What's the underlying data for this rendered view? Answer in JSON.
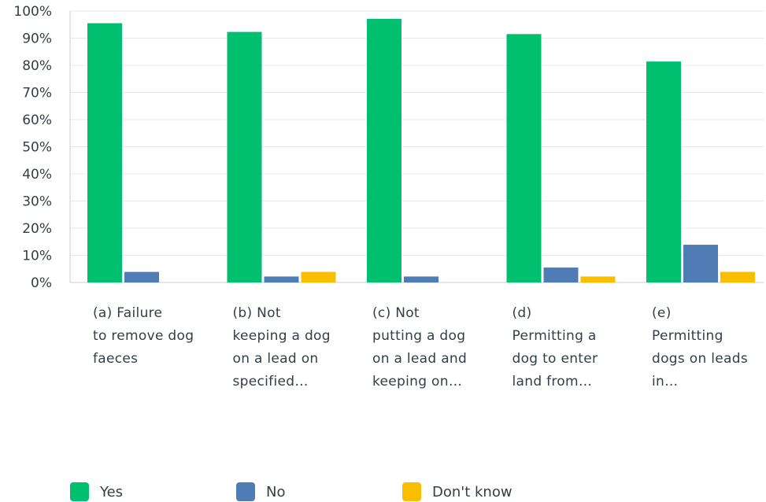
{
  "chart_data": {
    "type": "bar",
    "categories": [
      [
        "(a) Failure",
        "to remove dog",
        "faeces"
      ],
      [
        "(b) Not",
        "keeping a dog",
        "on a lead on",
        "specified…"
      ],
      [
        "(c) Not",
        "putting a dog",
        "on a lead and",
        "keeping on…"
      ],
      [
        "(d)",
        "Permitting a",
        "dog to enter",
        "land from…"
      ],
      [
        "(e)",
        "Permitting",
        "dogs on leads",
        "in…"
      ]
    ],
    "series": [
      {
        "name": "Yes",
        "color": "#00bf6f",
        "values": [
          95.5,
          92.3,
          97.1,
          91.5,
          81.4
        ]
      },
      {
        "name": "No",
        "color": "#507cb6",
        "values": [
          3.9,
          2.2,
          2.2,
          5.5,
          13.9
        ]
      },
      {
        "name": "Don't know",
        "color": "#f9be00",
        "values": [
          0,
          3.9,
          0,
          2.2,
          3.9
        ]
      }
    ],
    "yticks": [
      "0%",
      "10%",
      "20%",
      "30%",
      "40%",
      "50%",
      "60%",
      "70%",
      "80%",
      "90%",
      "100%"
    ],
    "ylim": [
      0,
      100
    ],
    "grid": true,
    "legend": "bottom-left",
    "title": "",
    "xlabel": "",
    "ylabel": ""
  },
  "legend": {
    "yes": "Yes",
    "no": "No",
    "dont_know": "Don't know"
  }
}
